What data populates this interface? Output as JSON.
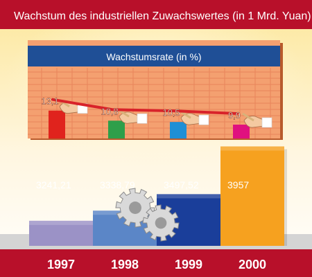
{
  "colors": {
    "title_bar": "#b8102a",
    "panel_header": "#1f4f96",
    "panel_bg": "#f4a070",
    "background": "#fdf3d0",
    "floor": "#d4d4d4",
    "trend_line": "#d8232a",
    "series_colors": [
      "#9b92c6",
      "#5b86c7",
      "#1a3e9a",
      "#f6a11f"
    ],
    "growth_bar_colors": [
      "#e0231d",
      "#2e9f4a",
      "#1f8fd6",
      "#e0117f"
    ]
  },
  "chart_data": [
    {
      "type": "line",
      "title": "Wachstumsrate (in %)",
      "categories": [
        "1997",
        "1998",
        "1999",
        "2000"
      ],
      "values": [
        13.1,
        10.8,
        10.5,
        9.9
      ],
      "value_labels": [
        "13,1",
        "10,8",
        "10,5",
        "9,9"
      ],
      "grid": true
    },
    {
      "type": "bar",
      "title": "Wachstum des industriellen Zuwachswertes (in 1 Mrd. Yuan)",
      "categories": [
        "1997",
        "1998",
        "1999",
        "2000"
      ],
      "values": [
        3241.21,
        3338.79,
        3497.52,
        3957
      ],
      "value_labels": [
        "3241,21",
        "3338,79",
        "3497,52",
        "3957"
      ]
    }
  ]
}
